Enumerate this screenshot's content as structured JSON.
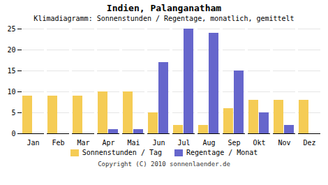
{
  "chart_data": {
    "type": "bar",
    "title": "Indien, Palanganatham",
    "subtitle": "Klimadiagramm: Sonnenstunden / Regentage, monatlich, gemittelt",
    "categories": [
      "Jan",
      "Feb",
      "Mar",
      "Apr",
      "Mai",
      "Jun",
      "Jul",
      "Aug",
      "Sep",
      "Okt",
      "Nov",
      "Dez"
    ],
    "series": [
      {
        "name": "Sonnenstunden / Tag",
        "color": "#f5cc55",
        "values": [
          9,
          9,
          9,
          10,
          10,
          5,
          2,
          2,
          6,
          8,
          8,
          8
        ]
      },
      {
        "name": "Regentage / Monat",
        "color": "#6666cc",
        "values": [
          0,
          0,
          0,
          1,
          1,
          17,
          25,
          24,
          15,
          5,
          2,
          0
        ]
      }
    ],
    "ylim": [
      0,
      25
    ],
    "yticks": [
      0,
      5,
      10,
      15,
      20,
      25
    ],
    "grid": true,
    "legend": "bottom",
    "annotations": [
      "Copyright (C) 2010 sonnenlaender.de"
    ]
  }
}
